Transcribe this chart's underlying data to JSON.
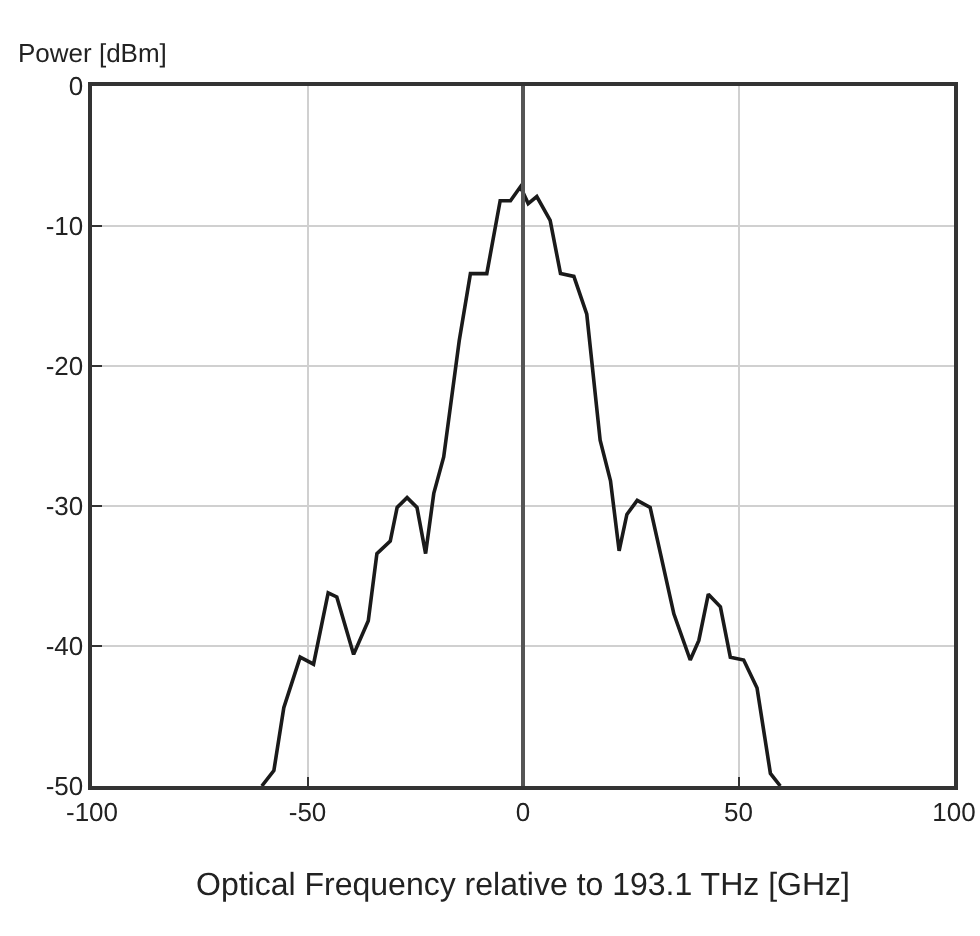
{
  "chart_data": {
    "type": "line",
    "xlabel": "Optical Frequency relative to 193.1 THz [GHz]",
    "ylabel": "Power [dBm]",
    "x": [
      -60.6,
      -57.8,
      -55.5,
      -51.7,
      -48.6,
      -45.2,
      -43.2,
      -39.3,
      -35.9,
      -33.9,
      -30.8,
      -29.2,
      -26.9,
      -24.6,
      -22.6,
      -20.7,
      -18.4,
      -14.8,
      -12.2,
      -8.4,
      -5.3,
      -2.9,
      -0.6,
      1.2,
      3.2,
      6.3,
      8.7,
      11.8,
      14.8,
      17.9,
      20.3,
      22.3,
      24.1,
      26.5,
      29.5,
      31.9,
      35.0,
      38.8,
      40.8,
      43.0,
      45.8,
      48.1,
      51.2,
      54.3,
      57.4,
      59.7
    ],
    "series": [
      {
        "color": "#1a1a1a",
        "values": [
          -50,
          -48.9,
          -44.4,
          -40.8,
          -41.3,
          -36.2,
          -36.5,
          -40.6,
          -38.2,
          -33.4,
          -32.5,
          -30.1,
          -29.4,
          -30.1,
          -33.4,
          -29.1,
          -26.5,
          -18.2,
          -13.4,
          -13.4,
          -8.2,
          -8.2,
          -7.2,
          -8.4,
          -7.9,
          -9.6,
          -13.4,
          -13.6,
          -16.3,
          -25.3,
          -28.2,
          -33.2,
          -30.6,
          -29.6,
          -30.1,
          -33.4,
          -37.7,
          -41.0,
          -39.6,
          -36.3,
          -37.2,
          -40.8,
          -41.0,
          -43.0,
          -49.1,
          -50
        ]
      }
    ],
    "xlim": [
      -100,
      100
    ],
    "xticks": [
      -100,
      -50,
      0,
      50,
      100
    ],
    "ylim": [
      -50,
      0
    ],
    "yticks": [
      0,
      -10,
      -20,
      -30,
      -40,
      -50
    ],
    "grid": true,
    "marker": "none",
    "line_style": "solid",
    "ref_lines": [
      {
        "axis": "x",
        "value": 0,
        "color": "#555555"
      }
    ]
  }
}
